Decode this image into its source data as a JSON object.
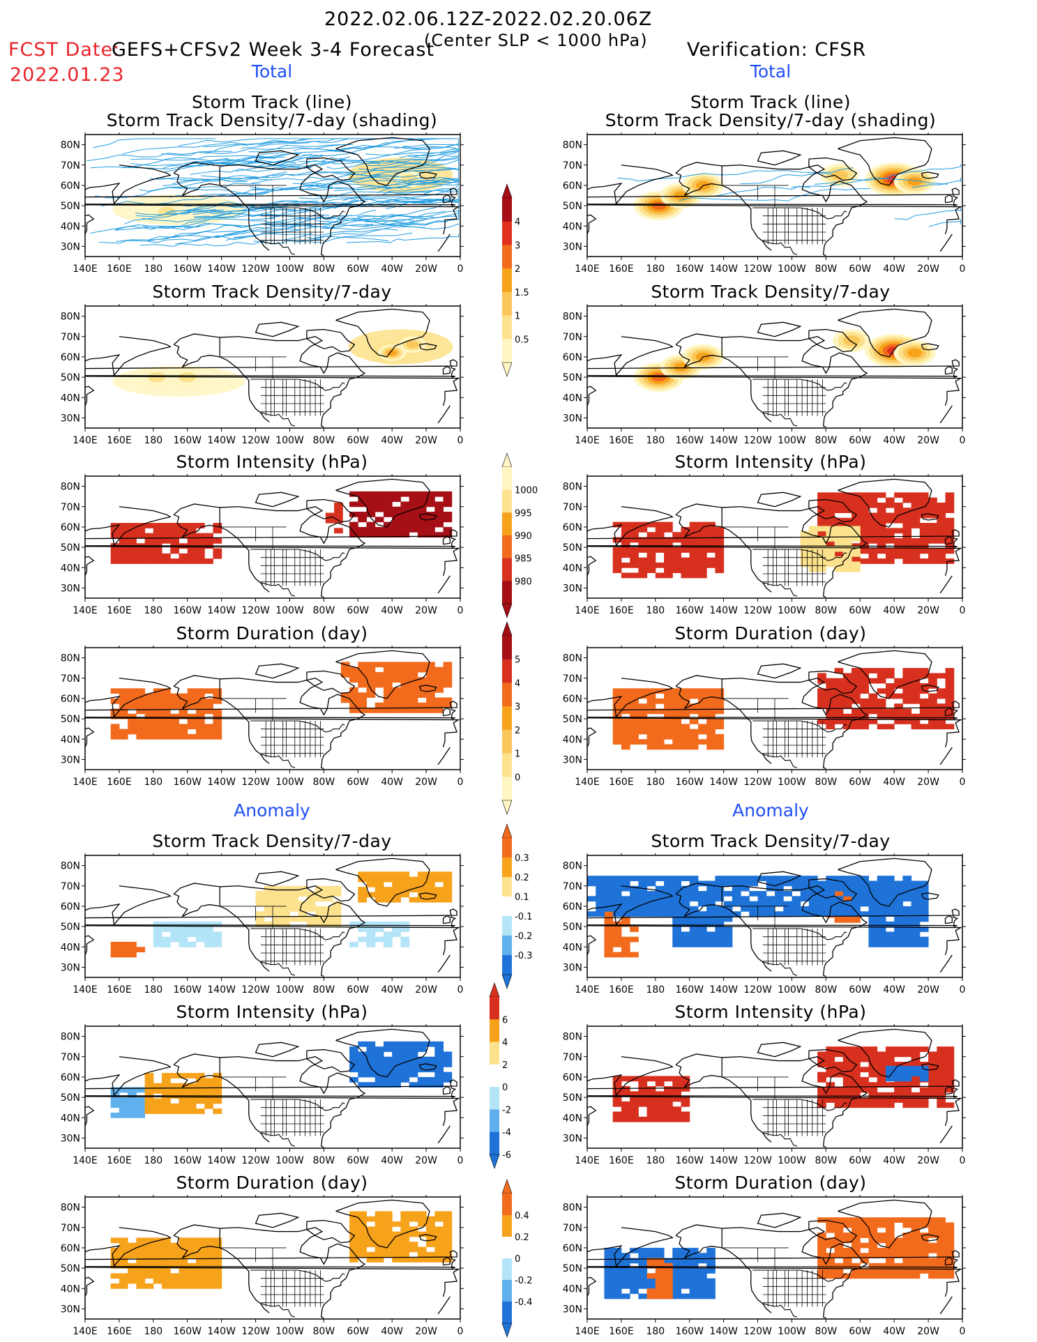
{
  "header": {
    "date_range": "2022.02.06.12Z-2022.02.20.06Z",
    "fcst_label": "FCST Date:",
    "fcst_date": "2022.01.23",
    "model": "GEFS+CFSv2 Week 3-4 Forecast",
    "criterion": "(Center SLP < 1000 hPa)",
    "verification": "Verification: CFSR"
  },
  "sections": {
    "total": "Total",
    "anomaly": "Anomaly"
  },
  "axes": {
    "lat_ticks": [
      "80N",
      "70N",
      "60N",
      "50N",
      "40N",
      "30N"
    ],
    "lon_ticks": [
      "140E",
      "160E",
      "180",
      "160W",
      "140W",
      "120W",
      "100W",
      "80W",
      "60W",
      "40W",
      "20W",
      "0"
    ]
  },
  "panel_titles": {
    "track_1": "Storm Track (line)",
    "track_2": "Storm Track Density/7-day (shading)",
    "density": "Storm Track Density/7-day",
    "intensity": "Storm Intensity (hPa)",
    "duration": "Storm Duration (day)"
  },
  "colorbars": {
    "density_total": {
      "labels": [
        "4",
        "3",
        "2",
        "1.5",
        "1",
        "0.5"
      ],
      "colors": [
        "#a50f15",
        "#e0301e",
        "#f26b1d",
        "#f7a21b",
        "#fbc65a",
        "#fde28e",
        "#fff6c3"
      ]
    },
    "intensity_total": {
      "labels": [
        "1000",
        "995",
        "990",
        "985",
        "980"
      ],
      "colors": [
        "#fff6c3",
        "#fde28e",
        "#f7a21b",
        "#f26b1d",
        "#d7301f",
        "#a50f15"
      ]
    },
    "duration_total": {
      "labels": [
        "5",
        "4",
        "3",
        "2",
        "1",
        "0"
      ],
      "colors": [
        "#a50f15",
        "#d7301f",
        "#f26b1d",
        "#f7a21b",
        "#fbc65a",
        "#fde28e",
        "#fff6c3"
      ]
    },
    "density_anom": {
      "labels": [
        "0.3",
        "0.2",
        "0.1",
        "-0.1",
        "-0.2",
        "-0.3"
      ],
      "colors": [
        "#f26b1d",
        "#f7a21b",
        "#fde28e",
        "#ffffff",
        "#b4e4f8",
        "#5fb0ec",
        "#1f73d8"
      ]
    },
    "intensity_anom": {
      "labels": [
        "6",
        "4",
        "2",
        "0",
        "-2",
        "-4",
        "-6"
      ],
      "colors": [
        "#d7301f",
        "#f7a21b",
        "#fde28e",
        "#ffffff",
        "#b4e4f8",
        "#5fb0ec",
        "#1f73d8"
      ]
    },
    "duration_anom": {
      "labels": [
        "0.4",
        "0.2",
        "0",
        "-0.2",
        "-0.4"
      ],
      "colors": [
        "#f26b1d",
        "#f7a21b",
        "#ffffff",
        "#b4e4f8",
        "#5fb0ec",
        "#1f73d8"
      ]
    }
  },
  "chart_data": [
    {
      "type": "heatmap",
      "panel": "forecast-storm-track",
      "title": "Storm Track (line) / Storm Track Density/7-day (shading)",
      "xlim": [
        "140E",
        "0"
      ],
      "ylim": [
        "30N",
        "80N"
      ],
      "shading": [
        {
          "lon": -172,
          "lat": 47,
          "value": 1
        },
        {
          "lon": -30,
          "lat": 63,
          "value": 1
        }
      ]
    },
    {
      "type": "heatmap",
      "panel": "verification-storm-track",
      "title": "Storm Track (line) / Storm Track Density/7-day (shading)",
      "xlim": [
        "140E",
        "0"
      ],
      "ylim": [
        "30N",
        "80N"
      ],
      "shading": [
        {
          "lon": -178,
          "lat": 50,
          "value": 3
        },
        {
          "lon": -165,
          "lat": 55,
          "value": 2
        },
        {
          "lon": -152,
          "lat": 60,
          "value": 2
        },
        {
          "lon": -72,
          "lat": 65,
          "value": 1.5
        },
        {
          "lon": -40,
          "lat": 63,
          "value": 4
        },
        {
          "lon": -28,
          "lat": 62,
          "value": 2
        }
      ]
    },
    {
      "type": "heatmap",
      "panel": "forecast-density",
      "title": "Storm Track Density/7-day",
      "xlim": [
        "140E",
        "0"
      ],
      "ylim": [
        "30N",
        "80N"
      ],
      "shading": [
        {
          "lon": -178,
          "lat": 50,
          "value": 1
        },
        {
          "lon": -160,
          "lat": 50,
          "value": 1
        },
        {
          "lon": -40,
          "lat": 62,
          "value": 2
        },
        {
          "lon": -28,
          "lat": 66,
          "value": 1.5
        }
      ]
    },
    {
      "type": "heatmap",
      "panel": "verification-density",
      "title": "Storm Track Density/7-day",
      "xlim": [
        "140E",
        "0"
      ],
      "ylim": [
        "30N",
        "80N"
      ],
      "shading": [
        {
          "lon": -178,
          "lat": 50,
          "value": 3
        },
        {
          "lon": -165,
          "lat": 55,
          "value": 2
        },
        {
          "lon": -152,
          "lat": 60,
          "value": 2
        },
        {
          "lon": -65,
          "lat": 68,
          "value": 1.5
        },
        {
          "lon": -40,
          "lat": 63,
          "value": 4
        },
        {
          "lon": -28,
          "lat": 62,
          "value": 2
        }
      ]
    },
    {
      "type": "heatmap",
      "panel": "forecast-intensity",
      "title": "Storm Intensity (hPa)",
      "xlim": [
        "140E",
        "0"
      ],
      "ylim": [
        "30N",
        "80N"
      ],
      "regions": [
        {
          "lon": [
            -205,
            -140
          ],
          "lat": [
            42,
            62
          ],
          "value": 982
        },
        {
          "lon": -75,
          "lat": [
            57,
            72
          ],
          "value": 985
        },
        {
          "lon": [
            -65,
            -5
          ],
          "lat": [
            55,
            76
          ],
          "value": 980
        }
      ]
    },
    {
      "type": "heatmap",
      "panel": "verification-intensity",
      "title": "Storm Intensity (hPa)",
      "xlim": [
        "140E",
        "0"
      ],
      "ylim": [
        "30N",
        "80N"
      ],
      "regions": [
        {
          "lon": [
            -205,
            -140
          ],
          "lat": [
            35,
            62
          ],
          "value": 985
        },
        {
          "lon": [
            -85,
            -5
          ],
          "lat": [
            42,
            75
          ],
          "value": 985
        }
      ]
    },
    {
      "type": "heatmap",
      "panel": "forecast-duration",
      "title": "Storm Duration (day)",
      "xlim": [
        "140E",
        "0"
      ],
      "ylim": [
        "30N",
        "80N"
      ],
      "regions": [
        {
          "lon": [
            -205,
            -140
          ],
          "lat": [
            40,
            63
          ],
          "value": 3
        },
        {
          "lon": [
            -70,
            -5
          ],
          "lat": [
            53,
            76
          ],
          "value": 3
        }
      ]
    },
    {
      "type": "heatmap",
      "panel": "verification-duration",
      "title": "Storm Duration (day)",
      "xlim": [
        "140E",
        "0"
      ],
      "ylim": [
        "30N",
        "80N"
      ],
      "regions": [
        {
          "lon": [
            -205,
            -140
          ],
          "lat": [
            35,
            63
          ],
          "value": 3
        },
        {
          "lon": [
            -85,
            -5
          ],
          "lat": [
            45,
            75
          ],
          "value": 4
        }
      ]
    },
    {
      "type": "heatmap",
      "panel": "forecast-density-anomaly",
      "title": "Storm Track Density/7-day",
      "xlim": [
        "140E",
        "0"
      ],
      "ylim": [
        "30N",
        "80N"
      ],
      "regions": [
        {
          "lon": [
            -205,
            -185
          ],
          "lat": [
            35,
            42
          ],
          "value": 0.3
        },
        {
          "lon": [
            -180,
            -140
          ],
          "lat": [
            40,
            52
          ],
          "value": -0.1
        },
        {
          "lon": [
            -120,
            -70
          ],
          "lat": [
            50,
            68
          ],
          "value": 0.1
        },
        {
          "lon": [
            -60,
            -5
          ],
          "lat": [
            62,
            76
          ],
          "value": 0.2
        },
        {
          "lon": [
            -65,
            -30
          ],
          "lat": [
            40,
            52
          ],
          "value": -0.1
        }
      ]
    },
    {
      "type": "heatmap",
      "panel": "verification-density-anomaly",
      "title": "Storm Track Density/7-day",
      "xlim": [
        "140E",
        "0"
      ],
      "ylim": [
        "30N",
        "80N"
      ],
      "regions": [
        {
          "lon": [
            -210,
            -190
          ],
          "lat": [
            35,
            58
          ],
          "value": 0.3
        },
        {
          "lon": [
            -170,
            -135
          ],
          "lat": [
            40,
            58
          ],
          "value": -0.3
        },
        {
          "lon": [
            -80,
            -60
          ],
          "lat": [
            52,
            68
          ],
          "value": 0.3
        },
        {
          "lon": [
            -55,
            -20
          ],
          "lat": [
            40,
            72
          ],
          "value": -0.3
        },
        {
          "lon": [
            -20,
            0
          ],
          "lat": [
            55,
            75
          ],
          "value": -0.3
        }
      ]
    },
    {
      "type": "heatmap",
      "panel": "forecast-intensity-anomaly",
      "title": "Storm Intensity (hPa)",
      "xlim": [
        "140E",
        "0"
      ],
      "ylim": [
        "30N",
        "80N"
      ],
      "regions": [
        {
          "lon": [
            -205,
            -185
          ],
          "lat": [
            40,
            55
          ],
          "value": -2
        },
        {
          "lon": [
            -185,
            -140
          ],
          "lat": [
            42,
            62
          ],
          "value": 2
        },
        {
          "lon": [
            -65,
            -5
          ],
          "lat": [
            55,
            76
          ],
          "value": -4
        }
      ]
    },
    {
      "type": "heatmap",
      "panel": "verification-intensity-anomaly",
      "title": "Storm Intensity (hPa)",
      "xlim": [
        "140E",
        "0"
      ],
      "ylim": [
        "30N",
        "80N"
      ],
      "regions": [
        {
          "lon": [
            -205,
            -160
          ],
          "lat": [
            38,
            60
          ],
          "value": 6
        },
        {
          "lon": [
            -85,
            -5
          ],
          "lat": [
            45,
            75
          ],
          "value": 6
        },
        {
          "lon": [
            -45,
            -20
          ],
          "lat": [
            58,
            64
          ],
          "value": -4
        }
      ]
    },
    {
      "type": "heatmap",
      "panel": "forecast-duration-anomaly",
      "title": "Storm Duration (day)",
      "xlim": [
        "140E",
        "0"
      ],
      "ylim": [
        "30N",
        "80N"
      ],
      "regions": [
        {
          "lon": [
            -205,
            -140
          ],
          "lat": [
            40,
            63
          ],
          "value": 0.2
        },
        {
          "lon": [
            -65,
            -5
          ],
          "lat": [
            53,
            76
          ],
          "value": 0.2
        }
      ]
    },
    {
      "type": "heatmap",
      "panel": "verification-duration-anomaly",
      "title": "Storm Duration (day)",
      "xlim": [
        "140E",
        "0"
      ],
      "ylim": [
        "30N",
        "80N"
      ],
      "regions": [
        {
          "lon": [
            -210,
            -145
          ],
          "lat": [
            35,
            60
          ],
          "value": -0.4
        },
        {
          "lon": [
            -185,
            -170
          ],
          "lat": [
            35,
            55
          ],
          "value": 0.4
        },
        {
          "lon": [
            -85,
            -5
          ],
          "lat": [
            45,
            75
          ],
          "value": 0.4
        }
      ]
    }
  ]
}
